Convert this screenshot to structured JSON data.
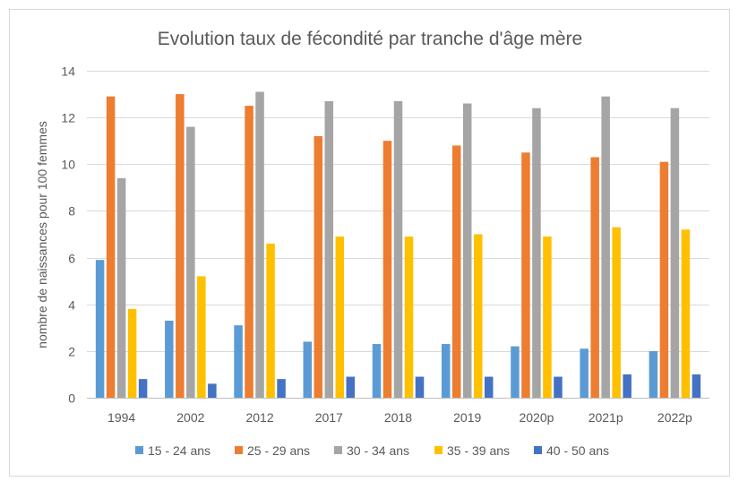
{
  "chart_data": {
    "type": "bar",
    "title": "Evolution taux de fécondité par tranche d'âge mère",
    "xlabel": "",
    "ylabel": "nombre de naissances pour 100 femmes",
    "ylim": [
      0,
      14
    ],
    "yticks": [
      0,
      2,
      4,
      6,
      8,
      10,
      12,
      14
    ],
    "grid": true,
    "legend": "bottom",
    "categories": [
      "1994",
      "2002",
      "2012",
      "2017",
      "2018",
      "2019",
      "2020p",
      "2021p",
      "2022p"
    ],
    "series": [
      {
        "name": "15 - 24 ans",
        "color": "#5B9BD5",
        "values": [
          5.9,
          3.3,
          3.1,
          2.4,
          2.3,
          2.3,
          2.2,
          2.1,
          2.0
        ]
      },
      {
        "name": "25 - 29 ans",
        "color": "#ED7D31",
        "values": [
          12.9,
          13.0,
          12.5,
          11.2,
          11.0,
          10.8,
          10.5,
          10.3,
          10.1
        ]
      },
      {
        "name": "30 - 34 ans",
        "color": "#A5A5A5",
        "values": [
          9.4,
          11.6,
          13.1,
          12.7,
          12.7,
          12.6,
          12.4,
          12.9,
          12.4
        ]
      },
      {
        "name": "35 - 39 ans",
        "color": "#FFC000",
        "values": [
          3.8,
          5.2,
          6.6,
          6.9,
          6.9,
          7.0,
          6.9,
          7.3,
          7.2
        ]
      },
      {
        "name": "40 - 50 ans",
        "color": "#4472C4",
        "values": [
          0.8,
          0.6,
          0.8,
          0.9,
          0.9,
          0.9,
          0.9,
          1.0,
          1.0
        ]
      }
    ]
  }
}
